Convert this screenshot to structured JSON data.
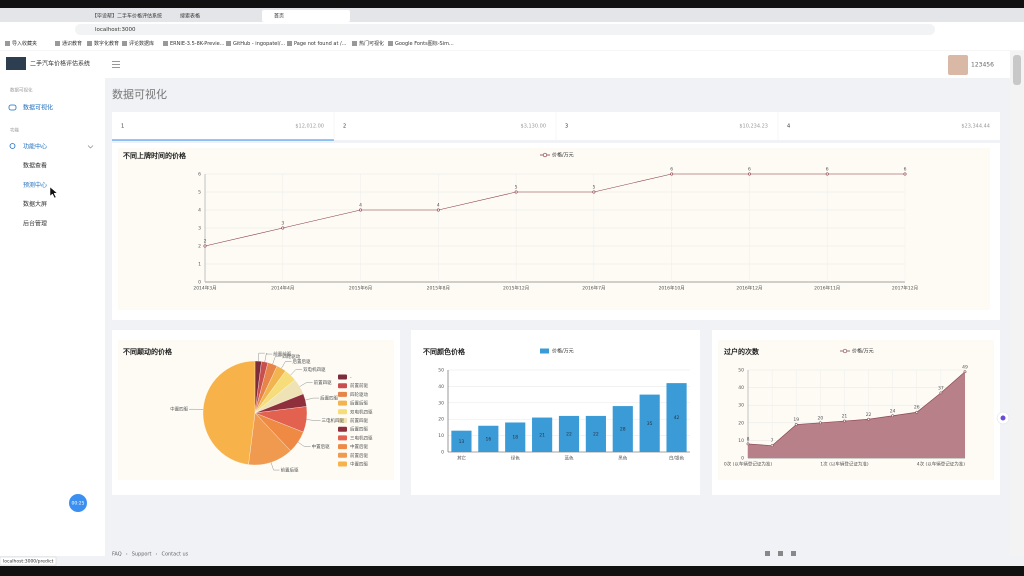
{
  "browser": {
    "tabs": [
      "【毕设帮】二手车价格评估系统",
      "搜索表格",
      "首页"
    ],
    "url": "localhost:3000",
    "bookmarks": [
      "导入收藏夹",
      "通识教育",
      "数字化教育",
      "评论数据库",
      "ERNIE-3.5-8K-Previe...",
      "GitHub - ingopatel/...",
      "Page not found at /...",
      "热门可视化",
      "Google Fonts图标-Sim..."
    ],
    "status": "localhost:3000/predict"
  },
  "app": {
    "title": "二手汽车价格评估系统",
    "user": "123456",
    "page_title": "数据可视化",
    "menu": {
      "section1": "数据可视化",
      "item1": "数据可视化",
      "section2": "功能",
      "group": "功能中心",
      "children": [
        "数据查看",
        "预测中心",
        "数据大屏",
        "后台管理"
      ]
    },
    "stats": [
      {
        "label": "1",
        "value": "$12,012.00"
      },
      {
        "label": "2",
        "value": "$3,130.00"
      },
      {
        "label": "3",
        "value": "$10,234.23"
      },
      {
        "label": "4",
        "value": "$23,344.44"
      }
    ],
    "timer": "00:25",
    "footer": [
      "FAQ",
      "Support",
      "Contact us"
    ]
  },
  "chart_data": [
    {
      "type": "line",
      "title": "不同上牌时间的价格",
      "categories": [
        "2014年3月",
        "2014年4月",
        "2015年6月",
        "2015年8月",
        "2015年12月",
        "2016年7月",
        "2016年10月",
        "2016年12月",
        "2016年11月",
        "2017年12月"
      ],
      "series": [
        {
          "name": "价格/万元",
          "color": "#8b3a46",
          "values": [
            2,
            3,
            4,
            4,
            5,
            5,
            6,
            6,
            6,
            6
          ]
        }
      ],
      "ylim": [
        0,
        6
      ],
      "yticks": [
        0,
        1,
        2,
        3,
        4,
        5,
        6
      ],
      "grid": true,
      "legend": "top"
    },
    {
      "type": "pie",
      "title": "不同颠动的价格",
      "categories": [
        "-",
        "前置前驱",
        "四轮驱动",
        "后置后驱",
        "双电机四驱",
        "前置四驱",
        "后置四驱",
        "三电机四驱",
        "中置后驱",
        "前置后驱",
        "中置四驱"
      ],
      "values": [
        2,
        2,
        3,
        3,
        4,
        5,
        4,
        8,
        7,
        14,
        48
      ],
      "colors": [
        "#7b2d3b",
        "#c94f4f",
        "#e6844a",
        "#f2b44f",
        "#f6dd7a",
        "#efe3b5",
        "#8f2f3c",
        "#e2614f",
        "#ee8a43",
        "#f09a50",
        "#f8b24a"
      ],
      "legend": "right"
    },
    {
      "type": "bar",
      "title": "不同颜色价格",
      "categories": [
        "其它",
        null,
        "绿色",
        null,
        "蓝色",
        null,
        "黑色",
        null,
        "白/银色"
      ],
      "series": [
        {
          "name": "价格/万元",
          "color": "#3b9bd6",
          "values": [
            13,
            16,
            18,
            21,
            22,
            22,
            28,
            35,
            42
          ]
        }
      ],
      "ylim": [
        0,
        50
      ],
      "yticks": [
        0,
        10,
        20,
        30,
        40,
        50
      ],
      "grid": true,
      "legend": "top"
    },
    {
      "type": "area",
      "title": "过户的次数",
      "categories": [
        "0次 (以车辆登记证为准)",
        null,
        null,
        null,
        "1次 (以车辆登记证为准)",
        null,
        null,
        null,
        "4次 (以车辆登记证为准)",
        null
      ],
      "series": [
        {
          "name": "价格/万元",
          "color": "#8b4b55",
          "fill": "#b88088",
          "values": [
            8,
            7,
            19,
            20,
            21,
            22,
            24,
            26,
            37,
            49
          ]
        }
      ],
      "ylim": [
        0,
        50
      ],
      "yticks": [
        0,
        10,
        20,
        30,
        40,
        50
      ],
      "grid": true,
      "legend": "top"
    }
  ]
}
